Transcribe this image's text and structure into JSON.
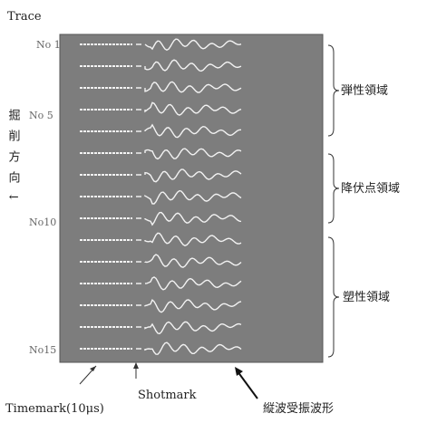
{
  "title": "Trace",
  "trace_labels": [
    "No 1",
    "No 5",
    "No10",
    "No15"
  ],
  "regions": [
    "弾性領域",
    "降伏点領域",
    "塑性領域"
  ],
  "side_text": "掘削方向↓",
  "annotations": {
    "timemark": "Timemark(10μs)",
    "shotmark": "Shotmark",
    "waveform": "縦波受振波形"
  }
}
